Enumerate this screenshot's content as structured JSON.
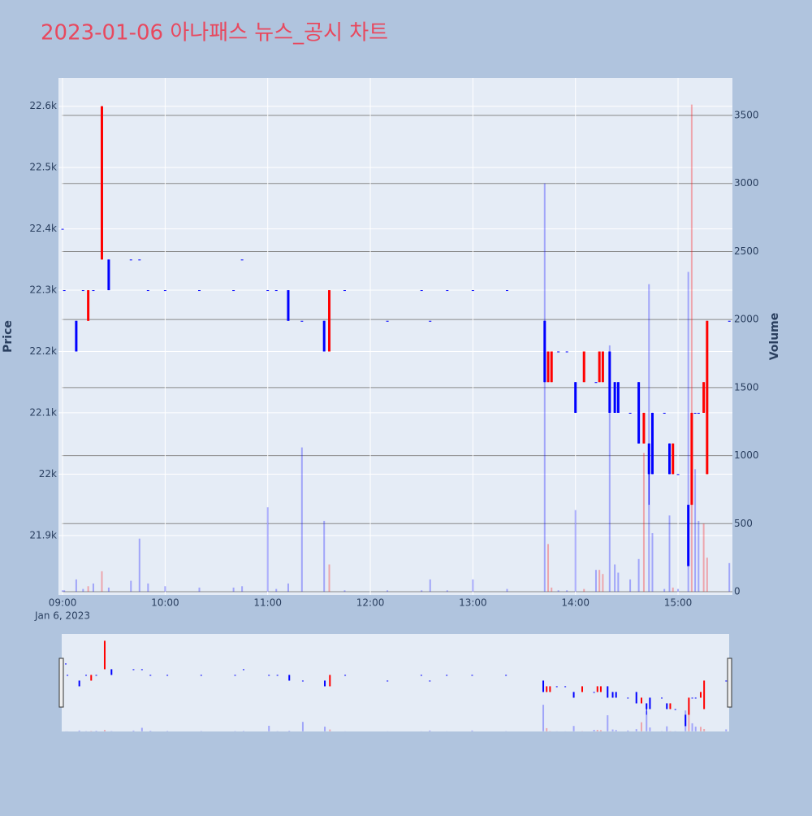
{
  "chart_data": {
    "type": "candlestick",
    "title": "2023-01-06 아나패스 뉴스_공시 차트",
    "ylabel": "Price",
    "y2label": "Volume",
    "x_date_label": "Jan 6, 2023",
    "x": [
      "2023-01-06 09:00",
      "2023-01-06 09:01",
      "2023-01-06 09:08",
      "2023-01-06 09:12",
      "2023-01-06 09:15",
      "2023-01-06 09:18",
      "2023-01-06 09:23",
      "2023-01-06 09:27",
      "2023-01-06 09:40",
      "2023-01-06 09:45",
      "2023-01-06 09:50",
      "2023-01-06 10:00",
      "2023-01-06 10:20",
      "2023-01-06 10:40",
      "2023-01-06 10:45",
      "2023-01-06 11:00",
      "2023-01-06 11:05",
      "2023-01-06 11:12",
      "2023-01-06 11:20",
      "2023-01-06 11:33",
      "2023-01-06 11:36",
      "2023-01-06 11:45",
      "2023-01-06 12:10",
      "2023-01-06 12:30",
      "2023-01-06 12:35",
      "2023-01-06 12:45",
      "2023-01-06 13:00",
      "2023-01-06 13:20",
      "2023-01-06 13:42",
      "2023-01-06 13:44",
      "2023-01-06 13:46",
      "2023-01-06 13:50",
      "2023-01-06 13:55",
      "2023-01-06 14:00",
      "2023-01-06 14:05",
      "2023-01-06 14:12",
      "2023-01-06 14:14",
      "2023-01-06 14:16",
      "2023-01-06 14:20",
      "2023-01-06 14:23",
      "2023-01-06 14:25",
      "2023-01-06 14:32",
      "2023-01-06 14:37",
      "2023-01-06 14:40",
      "2023-01-06 14:43",
      "2023-01-06 14:45",
      "2023-01-06 14:52",
      "2023-01-06 14:55",
      "2023-01-06 14:57",
      "2023-01-06 15:00",
      "2023-01-06 15:06",
      "2023-01-06 15:08",
      "2023-01-06 15:10",
      "2023-01-06 15:12",
      "2023-01-06 15:15",
      "2023-01-06 15:17",
      "2023-01-06 15:30"
    ],
    "open": [
      22400,
      22300,
      22250,
      22300,
      22250,
      22300,
      22350,
      22350,
      22350,
      22350,
      22300,
      22300,
      22300,
      22300,
      22350,
      22300,
      22300,
      22300,
      22250,
      22250,
      22200,
      22300,
      22250,
      22300,
      22250,
      22300,
      22300,
      22300,
      22250,
      22150,
      22150,
      22200,
      22200,
      22150,
      22150,
      22150,
      22150,
      22150,
      22200,
      22150,
      22150,
      22100,
      22150,
      22050,
      22050,
      22100,
      22100,
      22050,
      22000,
      22000,
      21950,
      21950,
      22100,
      22100,
      22100,
      22000,
      22250
    ],
    "high": [
      22400,
      22300,
      22250,
      22300,
      22300,
      22300,
      22600,
      22350,
      22350,
      22350,
      22300,
      22300,
      22300,
      22300,
      22350,
      22300,
      22300,
      22300,
      22250,
      22250,
      22300,
      22300,
      22250,
      22300,
      22250,
      22300,
      22300,
      22300,
      22250,
      22200,
      22200,
      22200,
      22200,
      22150,
      22200,
      22150,
      22200,
      22200,
      22200,
      22150,
      22150,
      22100,
      22150,
      22100,
      22050,
      22100,
      22100,
      22050,
      22050,
      22000,
      21950,
      22100,
      22100,
      22100,
      22150,
      22250,
      22250
    ],
    "low": [
      22400,
      22300,
      22200,
      22300,
      22250,
      22300,
      22350,
      22300,
      22350,
      22350,
      22300,
      22300,
      22300,
      22300,
      22350,
      22300,
      22300,
      22250,
      22250,
      22200,
      22200,
      22300,
      22250,
      22300,
      22250,
      22300,
      22300,
      22300,
      22150,
      22150,
      22150,
      22200,
      22200,
      22100,
      22150,
      22150,
      22150,
      22150,
      22100,
      22100,
      22100,
      22100,
      22050,
      22050,
      21950,
      22000,
      22100,
      22000,
      22000,
      22000,
      21850,
      21950,
      22100,
      22100,
      22100,
      22000,
      22250
    ],
    "close": [
      22400,
      22300,
      22200,
      22300,
      22300,
      22300,
      22600,
      22300,
      22350,
      22350,
      22300,
      22300,
      22300,
      22300,
      22350,
      22300,
      22300,
      22250,
      22250,
      22200,
      22300,
      22300,
      22250,
      22300,
      22250,
      22300,
      22300,
      22300,
      22150,
      22200,
      22200,
      22200,
      22200,
      22100,
      22200,
      22150,
      22200,
      22200,
      22100,
      22100,
      22100,
      22100,
      22050,
      22100,
      22000,
      22000,
      22100,
      22000,
      22050,
      22000,
      21850,
      22100,
      22100,
      22100,
      22150,
      22250,
      22250
    ],
    "volume": [
      10,
      10,
      90,
      20,
      40,
      60,
      150,
      30,
      80,
      390,
      60,
      40,
      30,
      30,
      40,
      620,
      20,
      60,
      1060,
      520,
      200,
      10,
      10,
      10,
      90,
      10,
      90,
      20,
      3000,
      350,
      30,
      10,
      10,
      600,
      20,
      160,
      160,
      130,
      1810,
      200,
      140,
      90,
      240,
      1020,
      2260,
      430,
      20,
      560,
      30,
      20,
      2350,
      3580,
      900,
      520,
      500,
      250,
      210
    ],
    "increasing_color": "#ff0000",
    "decreasing_color": "#0000ff",
    "ylim": [
      21803,
      22646
    ],
    "yticks": [
      {
        "value": 21900,
        "label": "21.9k"
      },
      {
        "value": 22000,
        "label": "22k"
      },
      {
        "value": 22100,
        "label": "22.1k"
      },
      {
        "value": 22200,
        "label": "22.2k"
      },
      {
        "value": 22300,
        "label": "22.3k"
      },
      {
        "value": 22400,
        "label": "22.4k"
      },
      {
        "value": 22500,
        "label": "22.5k"
      },
      {
        "value": 22600,
        "label": "22.6k"
      }
    ],
    "y2lim": [
      -24,
      3775
    ],
    "y2ticks": [
      0,
      500,
      1000,
      1500,
      2000,
      2500,
      3000,
      3500
    ],
    "xlim": [
      "2023-01-06 08:57:36",
      "2023-01-06 15:31:48"
    ],
    "xticks": [
      {
        "value": "2023-01-06 09:00",
        "label": "09:00"
      },
      {
        "value": "2023-01-06 10:00",
        "label": "10:00"
      },
      {
        "value": "2023-01-06 11:00",
        "label": "11:00"
      },
      {
        "value": "2023-01-06 12:00",
        "label": "12:00"
      },
      {
        "value": "2023-01-06 13:00",
        "label": "13:00"
      },
      {
        "value": "2023-01-06 14:00",
        "label": "14:00"
      },
      {
        "value": "2023-01-06 15:00",
        "label": "15:00"
      }
    ],
    "rangeslider": true
  }
}
